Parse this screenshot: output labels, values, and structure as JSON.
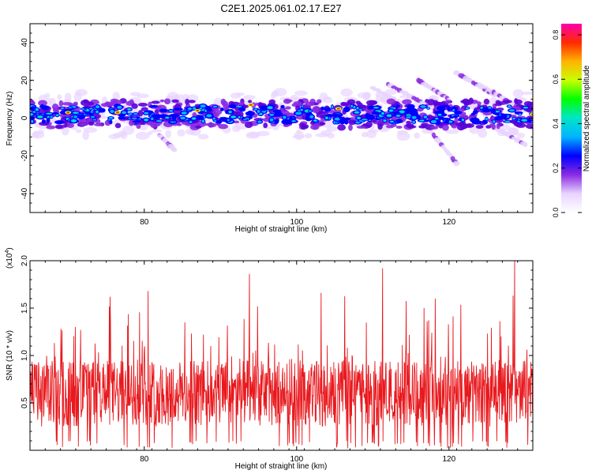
{
  "title": "C2E1.2025.061.02.17.E27",
  "chart_data": [
    {
      "type": "heatmap",
      "xlabel": "Height of straight line (km)",
      "ylabel": "Frequency (Hz)",
      "xlim": [
        65,
        131
      ],
      "ylim": [
        -50,
        50
      ],
      "x_ticks": [
        80,
        100,
        120
      ],
      "y_ticks": [
        40,
        20,
        0,
        -20,
        -40
      ],
      "colorbar": {
        "label": "Normalized spectral amplitude",
        "range": [
          0,
          0.85
        ],
        "ticks": [
          "0.8",
          "0.6",
          "0.4",
          "0.2",
          "0.0"
        ],
        "colors": [
          "#ffffff",
          "#e8d4ff",
          "#8a2be2",
          "#0000ff",
          "#00b4ff",
          "#00e5c8",
          "#00ff00",
          "#c8ff00",
          "#ffb400",
          "#ff2a00",
          "#ff00aa"
        ]
      },
      "band": {
        "center_hz": 2,
        "half_width_hz": 8
      },
      "streaks": [
        {
          "x0": 82,
          "y0": -9,
          "x1": 84,
          "y1": -17
        },
        {
          "x0": 110,
          "y0": 16,
          "x1": 116,
          "y1": 3
        },
        {
          "x0": 112,
          "y0": 18,
          "x1": 118,
          "y1": 5
        },
        {
          "x0": 116,
          "y0": 20,
          "x1": 120,
          "y1": 10
        },
        {
          "x0": 117,
          "y0": -4,
          "x1": 121,
          "y1": -24
        },
        {
          "x0": 121,
          "y0": 24,
          "x1": 126,
          "y1": 12
        },
        {
          "x0": 124,
          "y0": 18,
          "x1": 130,
          "y1": 4
        },
        {
          "x0": 126,
          "y0": -5,
          "x1": 130,
          "y1": -14
        }
      ]
    },
    {
      "type": "line",
      "xlabel": "Height of straight line (km)",
      "ylabel": "SNR (10 * v/v)",
      "scale_label": "(x10",
      "scale_exponent": "4",
      "scale_close": ")",
      "xlim": [
        65,
        131
      ],
      "ylim": [
        0,
        2.0
      ],
      "x_ticks": [
        80,
        100,
        120
      ],
      "y_ticks": [
        "2.0",
        "1.5",
        "1.0",
        "0.5"
      ],
      "y_tick_values": [
        2.0,
        1.5,
        1.0,
        0.5
      ],
      "line_color": "#e8191e",
      "peaks": [
        {
          "x": 75.5,
          "y": 1.62
        },
        {
          "x": 80.5,
          "y": 1.68
        },
        {
          "x": 93.8,
          "y": 1.86
        },
        {
          "x": 103.2,
          "y": 1.66
        },
        {
          "x": 111.3,
          "y": 1.92
        },
        {
          "x": 118.2,
          "y": 1.6
        },
        {
          "x": 128.6,
          "y": 2.0
        },
        {
          "x": 128.4,
          "y": 1.63
        }
      ],
      "baseline_mean": 0.6
    }
  ]
}
